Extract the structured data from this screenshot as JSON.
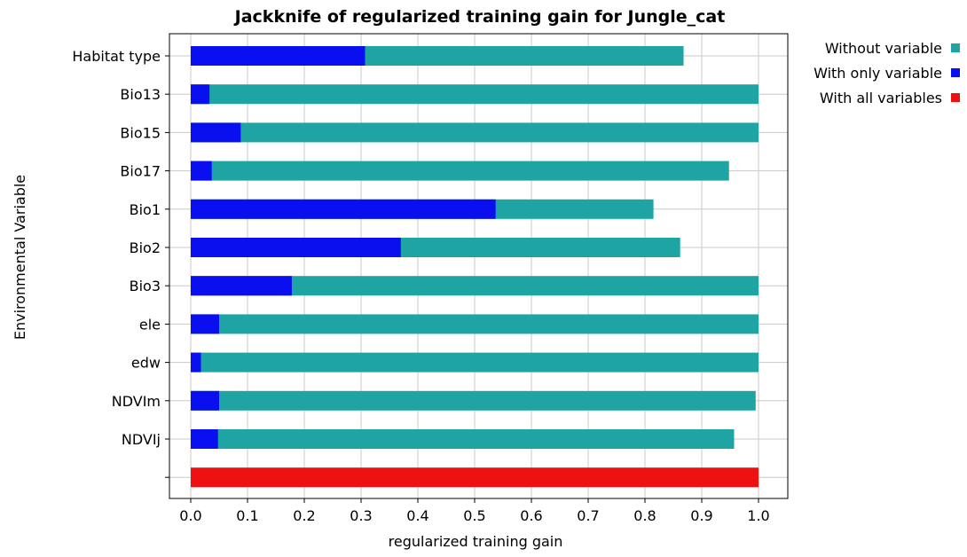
{
  "chart_data": {
    "type": "bar",
    "orientation": "horizontal",
    "title": "Jackknife of regularized training gain for Jungle_cat",
    "xlabel": "regularized training gain",
    "ylabel": "Environmental Variable",
    "xlim": [
      0.0,
      1.0
    ],
    "xticks": [
      "0.0",
      "0.1",
      "0.2",
      "0.3",
      "0.4",
      "0.5",
      "0.6",
      "0.7",
      "0.8",
      "0.9",
      "1.0"
    ],
    "grid": true,
    "legend_position": "top-right-outside",
    "categories": [
      "Habitat type",
      "Bio13",
      "Bio15",
      "Bio17",
      "Bio1",
      "Bio2",
      "Bio3",
      "ele",
      "edw",
      "NDVIm",
      "NDVIj"
    ],
    "series": [
      {
        "name": "Without variable",
        "color": "#1ea5a3",
        "values": [
          0.868,
          1.0,
          1.0,
          0.948,
          0.815,
          0.862,
          1.0,
          1.0,
          1.0,
          0.995,
          0.957
        ]
      },
      {
        "name": "With only variable",
        "color": "#0a0ff0",
        "values": [
          0.307,
          0.033,
          0.088,
          0.037,
          0.537,
          0.37,
          0.178,
          0.05,
          0.018,
          0.05,
          0.048
        ]
      },
      {
        "name": "With all variables",
        "color": "#ee1111",
        "value": 1.0
      }
    ]
  }
}
